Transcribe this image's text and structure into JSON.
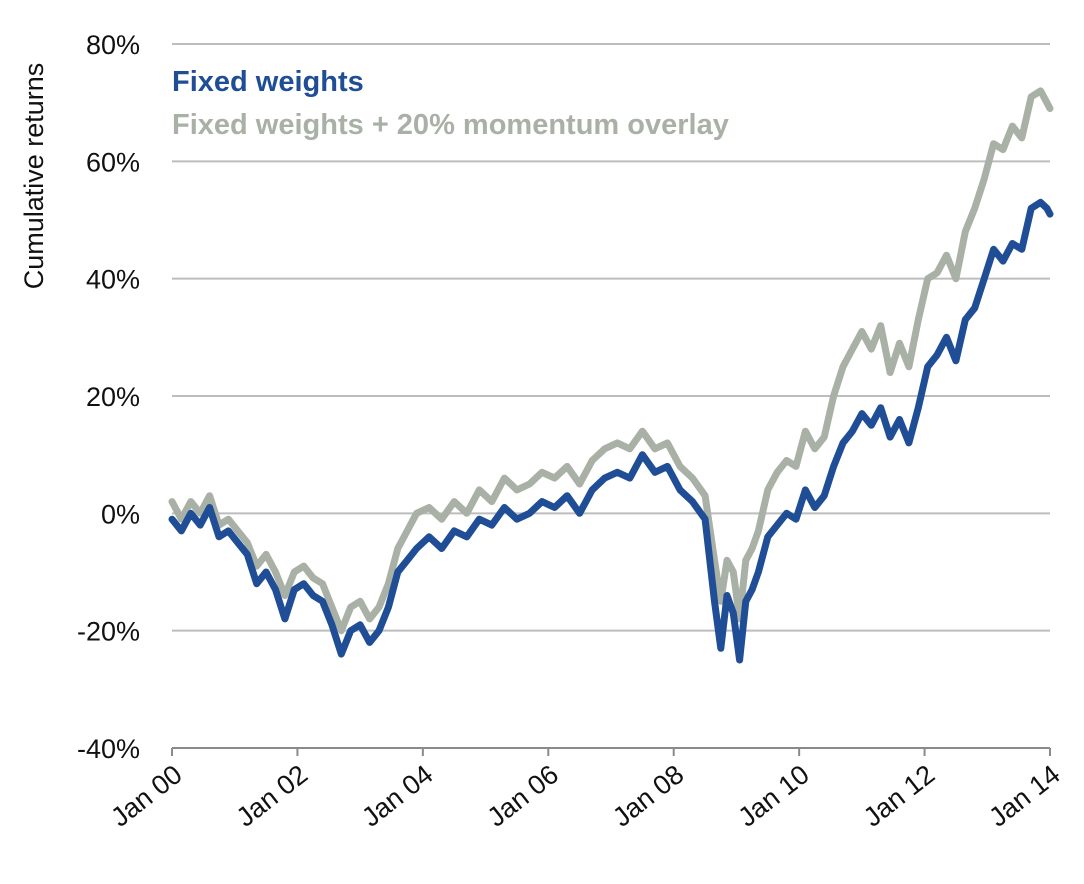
{
  "chart_data": {
    "type": "line",
    "ylabel": "Cumulative returns",
    "xlabel": "",
    "ylim": [
      -40,
      80
    ],
    "y_unit": "%",
    "y_ticks": [
      "-40%",
      "-20%",
      "0%",
      "20%",
      "40%",
      "60%",
      "80%"
    ],
    "y_tick_values": [
      -40,
      -20,
      0,
      20,
      40,
      60,
      80
    ],
    "x_ticks": [
      "Jan 00",
      "Jan 02",
      "Jan 04",
      "Jan 06",
      "Jan 08",
      "Jan 10",
      "Jan 12",
      "Jan 14"
    ],
    "x_tick_values": [
      2000.0,
      2002.0,
      2004.0,
      2006.0,
      2008.0,
      2010.0,
      2012.0,
      2014.0
    ],
    "xlim": [
      2000.0,
      2014.0
    ],
    "grid": "horizontal",
    "legend_position": "top-left",
    "series": [
      {
        "name": "Fixed weights",
        "color": "#1f4e96",
        "x": [
          2000.0,
          2000.15,
          2000.3,
          2000.45,
          2000.6,
          2000.75,
          2000.9,
          2001.05,
          2001.2,
          2001.35,
          2001.5,
          2001.65,
          2001.8,
          2001.95,
          2002.1,
          2002.25,
          2002.4,
          2002.55,
          2002.7,
          2002.85,
          2003.0,
          2003.15,
          2003.3,
          2003.45,
          2003.6,
          2003.75,
          2003.9,
          2004.1,
          2004.3,
          2004.5,
          2004.7,
          2004.9,
          2005.1,
          2005.3,
          2005.5,
          2005.7,
          2005.9,
          2006.1,
          2006.3,
          2006.5,
          2006.7,
          2006.9,
          2007.1,
          2007.3,
          2007.5,
          2007.7,
          2007.9,
          2008.1,
          2008.3,
          2008.5,
          2008.65,
          2008.75,
          2008.85,
          2008.95,
          2009.05,
          2009.15,
          2009.25,
          2009.35,
          2009.5,
          2009.65,
          2009.8,
          2009.95,
          2010.1,
          2010.25,
          2010.4,
          2010.55,
          2010.7,
          2010.85,
          2011.0,
          2011.15,
          2011.3,
          2011.45,
          2011.6,
          2011.75,
          2011.9,
          2012.05,
          2012.2,
          2012.35,
          2012.5,
          2012.65,
          2012.8,
          2012.95,
          2013.1,
          2013.25,
          2013.4,
          2013.55,
          2013.7,
          2013.85,
          2013.95,
          2014.0
        ],
        "values": [
          -1,
          -3,
          0,
          -2,
          1,
          -4,
          -3,
          -5,
          -7,
          -12,
          -10,
          -13,
          -18,
          -13,
          -12,
          -14,
          -15,
          -19,
          -24,
          -20,
          -19,
          -22,
          -20,
          -16,
          -10,
          -8,
          -6,
          -4,
          -6,
          -3,
          -4,
          -1,
          -2,
          1,
          -1,
          0,
          2,
          1,
          3,
          0,
          4,
          6,
          7,
          6,
          10,
          7,
          8,
          4,
          2,
          -1,
          -15,
          -23,
          -14,
          -17,
          -25,
          -15,
          -13,
          -10,
          -4,
          -2,
          0,
          -1,
          4,
          1,
          3,
          8,
          12,
          14,
          17,
          15,
          18,
          13,
          16,
          12,
          18,
          25,
          27,
          30,
          26,
          33,
          35,
          40,
          45,
          43,
          46,
          45,
          52,
          53,
          52,
          51
        ]
      },
      {
        "name": "Fixed weights + 20% momentum overlay",
        "color": "#a9b0a6",
        "x": [
          2000.0,
          2000.15,
          2000.3,
          2000.45,
          2000.6,
          2000.75,
          2000.9,
          2001.05,
          2001.2,
          2001.35,
          2001.5,
          2001.65,
          2001.8,
          2001.95,
          2002.1,
          2002.25,
          2002.4,
          2002.55,
          2002.7,
          2002.85,
          2003.0,
          2003.15,
          2003.3,
          2003.45,
          2003.6,
          2003.75,
          2003.9,
          2004.1,
          2004.3,
          2004.5,
          2004.7,
          2004.9,
          2005.1,
          2005.3,
          2005.5,
          2005.7,
          2005.9,
          2006.1,
          2006.3,
          2006.5,
          2006.7,
          2006.9,
          2007.1,
          2007.3,
          2007.5,
          2007.7,
          2007.9,
          2008.1,
          2008.3,
          2008.5,
          2008.65,
          2008.75,
          2008.85,
          2008.95,
          2009.05,
          2009.15,
          2009.25,
          2009.35,
          2009.5,
          2009.65,
          2009.8,
          2009.95,
          2010.1,
          2010.25,
          2010.4,
          2010.55,
          2010.7,
          2010.85,
          2011.0,
          2011.15,
          2011.3,
          2011.45,
          2011.6,
          2011.75,
          2011.9,
          2012.05,
          2012.2,
          2012.35,
          2012.5,
          2012.65,
          2012.8,
          2012.95,
          2013.1,
          2013.25,
          2013.4,
          2013.55,
          2013.7,
          2013.85,
          2013.95,
          2014.0
        ],
        "values": [
          2,
          -1,
          2,
          0,
          3,
          -2,
          -1,
          -3,
          -5,
          -9,
          -7,
          -10,
          -14,
          -10,
          -9,
          -11,
          -12,
          -16,
          -20,
          -16,
          -15,
          -18,
          -16,
          -12,
          -6,
          -3,
          0,
          1,
          -1,
          2,
          0,
          4,
          2,
          6,
          4,
          5,
          7,
          6,
          8,
          5,
          9,
          11,
          12,
          11,
          14,
          11,
          12,
          8,
          6,
          3,
          -8,
          -15,
          -8,
          -10,
          -18,
          -8,
          -6,
          -3,
          4,
          7,
          9,
          8,
          14,
          11,
          13,
          20,
          25,
          28,
          31,
          28,
          32,
          24,
          29,
          25,
          33,
          40,
          41,
          44,
          40,
          48,
          52,
          57,
          63,
          62,
          66,
          64,
          71,
          72,
          70,
          69
        ]
      }
    ]
  }
}
